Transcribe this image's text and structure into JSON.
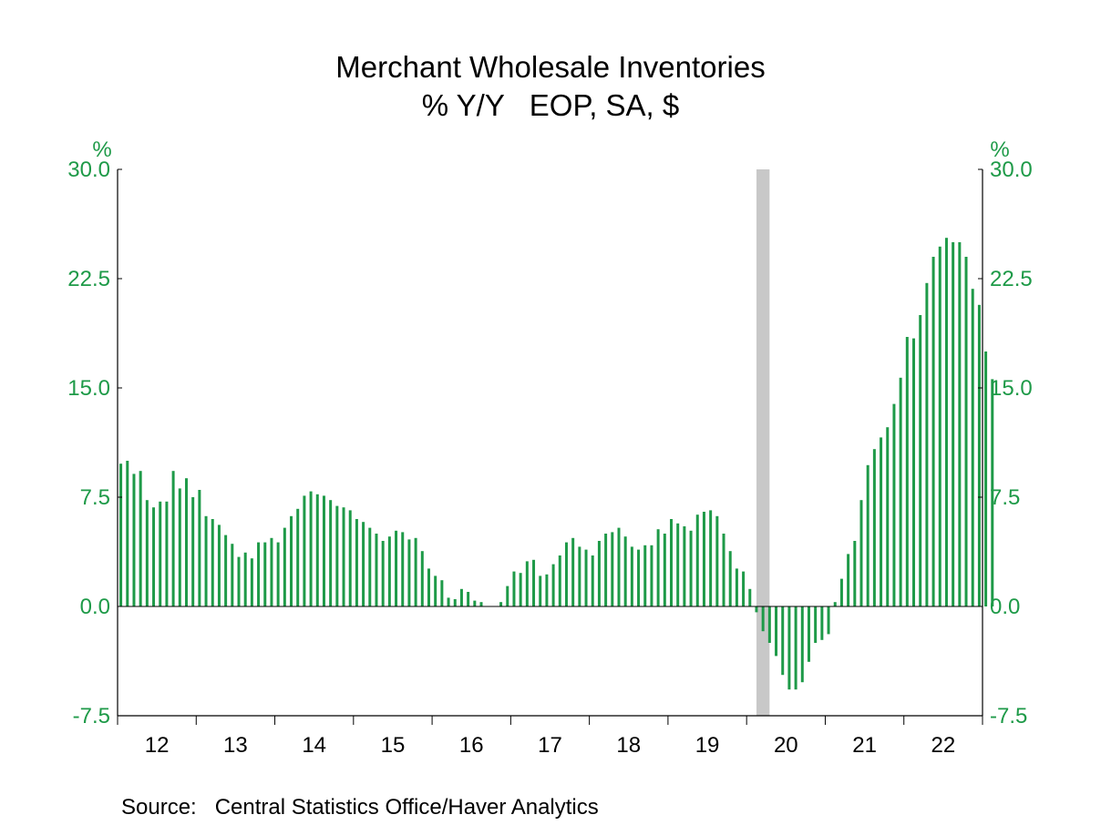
{
  "chart_data": {
    "type": "bar",
    "title": "Merchant Wholesale Inventories",
    "subtitle": "% Y/Y   EOP, SA, $",
    "ylabel_left": "%",
    "ylabel_right": "%",
    "ylim": [
      -7.5,
      30.0
    ],
    "yticks": [
      "30.0",
      "22.5",
      "15.0",
      "7.5",
      "0.0",
      "-7.5"
    ],
    "ytick_values": [
      30.0,
      22.5,
      15.0,
      7.5,
      0.0,
      -7.5
    ],
    "xlim": [
      "2012-01",
      "2023-01"
    ],
    "xticks": [
      "12",
      "13",
      "14",
      "15",
      "16",
      "17",
      "18",
      "19",
      "20",
      "21",
      "22"
    ],
    "recession": {
      "start": "2020-02",
      "end": "2020-04"
    },
    "grid": false,
    "legend": "none",
    "start_month": "2012-01",
    "frequency": "monthly",
    "values": [
      9.8,
      10.0,
      9.1,
      9.3,
      7.3,
      6.8,
      7.2,
      7.2,
      9.3,
      8.1,
      8.8,
      7.5,
      8.0,
      6.2,
      6.0,
      5.6,
      4.9,
      4.3,
      3.4,
      3.7,
      3.3,
      4.4,
      4.4,
      4.7,
      4.4,
      5.4,
      6.2,
      6.7,
      7.6,
      7.9,
      7.7,
      7.6,
      7.3,
      6.9,
      6.8,
      6.6,
      6.0,
      5.8,
      5.4,
      5.0,
      4.5,
      4.8,
      5.2,
      5.1,
      4.6,
      4.7,
      3.8,
      2.6,
      2.1,
      1.8,
      0.6,
      0.5,
      1.2,
      1.0,
      0.4,
      0.3,
      0.0,
      0.0,
      0.3,
      1.4,
      2.4,
      2.3,
      3.1,
      3.2,
      2.1,
      2.2,
      2.9,
      3.5,
      4.4,
      4.7,
      4.1,
      3.9,
      3.5,
      4.5,
      5.0,
      5.1,
      5.4,
      4.8,
      4.1,
      3.9,
      4.2,
      4.2,
      5.3,
      5.0,
      6.0,
      5.7,
      5.5,
      5.2,
      6.3,
      6.5,
      6.6,
      6.2,
      5.0,
      3.8,
      2.6,
      2.4,
      1.2,
      -0.4,
      -1.7,
      -2.5,
      -3.4,
      -4.7,
      -5.7,
      -5.7,
      -5.2,
      -3.8,
      -2.5,
      -2.3,
      -1.9,
      0.3,
      1.9,
      3.6,
      4.5,
      7.3,
      9.7,
      10.8,
      11.6,
      12.3,
      13.9,
      15.7,
      18.5,
      18.4,
      20.0,
      22.2,
      24.0,
      24.7,
      25.3,
      25.0,
      25.0,
      24.0,
      21.8,
      20.7,
      17.5,
      15.6
    ],
    "colors": {
      "bars": "#1e9a48",
      "axis_labels": "#1e9a48",
      "recession": "#c8c8c8",
      "axis": "#000000"
    }
  },
  "source": "Source:   Central Statistics Office/Haver Analytics"
}
